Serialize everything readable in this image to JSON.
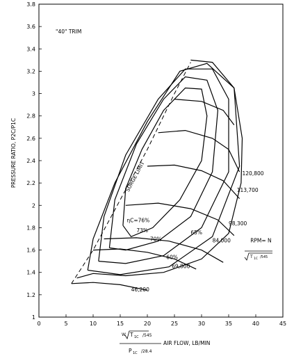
{
  "chart_data": {
    "type": "line",
    "annotation": "\"40\" TRIM",
    "ylabel": "PRESSURE RATIO, P2C/P1C",
    "xlabel": {
      "numerator_prefix": "W",
      "numerator_root": "T",
      "numerator_sub": "1C",
      "numerator_tail": "/545",
      "denominator_main": "P",
      "denominator_sub": "1C",
      "denominator_tail": "/28.4",
      "suffix": "AIR FLOW, LB/MIN"
    },
    "xlim": [
      0,
      45
    ],
    "ylim": [
      1,
      3.8
    ],
    "x_ticks": [
      "0",
      "5",
      "10",
      "15",
      "20",
      "25",
      "30",
      "35",
      "40",
      "45"
    ],
    "y_ticks": [
      "1",
      "1.2",
      "1.4",
      "1.6",
      "1.8",
      "2",
      "2.2",
      "2.4",
      "2.6",
      "2.8",
      "3",
      "3.2",
      "3.4",
      "3.6",
      "3.8"
    ],
    "surge_limit": {
      "label": "SURGE LIMIT",
      "points": [
        [
          6,
          1.3
        ],
        [
          10,
          1.6
        ],
        [
          15,
          2.05
        ],
        [
          20,
          2.5
        ],
        [
          25,
          3.0
        ],
        [
          28,
          3.28
        ]
      ]
    },
    "speed_lines": [
      {
        "label": "46,200",
        "points": [
          [
            6,
            1.3
          ],
          [
            10,
            1.31
          ],
          [
            15,
            1.29
          ],
          [
            20,
            1.24
          ]
        ]
      },
      {
        "label": "69,800",
        "points": [
          [
            10,
            1.6
          ],
          [
            15,
            1.61
          ],
          [
            20,
            1.58
          ],
          [
            25,
            1.52
          ],
          [
            29,
            1.43
          ]
        ]
      },
      {
        "label": "84,000",
        "points": [
          [
            12,
            1.7
          ],
          [
            18,
            1.71
          ],
          [
            24,
            1.68
          ],
          [
            30,
            1.6
          ],
          [
            34,
            1.49
          ]
        ]
      },
      {
        "label": "98,300",
        "points": [
          [
            16,
            2.0
          ],
          [
            22,
            2.02
          ],
          [
            28,
            1.97
          ],
          [
            33,
            1.87
          ],
          [
            36,
            1.73
          ]
        ]
      },
      {
        "label": "113,700",
        "points": [
          [
            20,
            2.35
          ],
          [
            25,
            2.36
          ],
          [
            30,
            2.31
          ],
          [
            34,
            2.22
          ],
          [
            37,
            2.06
          ]
        ]
      },
      {
        "label": "120,800",
        "points": [
          [
            22,
            2.65
          ],
          [
            27,
            2.67
          ],
          [
            32,
            2.6
          ],
          [
            35,
            2.5
          ],
          [
            37,
            2.3
          ]
        ]
      },
      {
        "label": "",
        "points": [
          [
            25,
            2.95
          ],
          [
            30,
            2.93
          ],
          [
            34,
            2.85
          ],
          [
            36,
            2.72
          ]
        ]
      }
    ],
    "efficiency_islands": [
      {
        "label": "ηC=76%",
        "points": [
          [
            15.5,
            1.82
          ],
          [
            16,
            2.15
          ],
          [
            19,
            2.5
          ],
          [
            23,
            2.85
          ],
          [
            27,
            3.05
          ],
          [
            30,
            3.04
          ],
          [
            31,
            2.8
          ],
          [
            30,
            2.4
          ],
          [
            26,
            2.05
          ],
          [
            21,
            1.8
          ],
          [
            17,
            1.72
          ],
          [
            15.5,
            1.82
          ]
        ]
      },
      {
        "label": "73%",
        "points": [
          [
            13,
            1.62
          ],
          [
            14,
            2.05
          ],
          [
            18,
            2.55
          ],
          [
            23,
            2.95
          ],
          [
            27,
            3.15
          ],
          [
            31,
            3.12
          ],
          [
            33,
            2.85
          ],
          [
            32,
            2.3
          ],
          [
            28,
            1.9
          ],
          [
            22,
            1.68
          ],
          [
            16,
            1.6
          ],
          [
            13,
            1.62
          ]
        ]
      },
      {
        "label": "70%",
        "points": [
          [
            11,
            1.5
          ],
          [
            12,
            1.9
          ],
          [
            16,
            2.45
          ],
          [
            22,
            2.95
          ],
          [
            27,
            3.22
          ],
          [
            32,
            3.22
          ],
          [
            35,
            2.95
          ],
          [
            35,
            2.3
          ],
          [
            30,
            1.8
          ],
          [
            23,
            1.55
          ],
          [
            16,
            1.48
          ],
          [
            11,
            1.5
          ]
        ]
      },
      {
        "label": "65%",
        "points": [
          [
            9,
            1.42
          ],
          [
            10,
            1.7
          ],
          [
            14,
            2.2
          ],
          [
            20,
            2.75
          ],
          [
            26,
            3.2
          ],
          [
            31,
            3.27
          ],
          [
            36,
            3.05
          ],
          [
            37,
            2.35
          ],
          [
            32,
            1.72
          ],
          [
            24,
            1.45
          ],
          [
            15,
            1.38
          ],
          [
            9,
            1.42
          ]
        ]
      },
      {
        "label": "60%",
        "points": [
          [
            7,
            1.35
          ],
          [
            10,
            1.39
          ],
          [
            16,
            1.37
          ],
          [
            23,
            1.4
          ],
          [
            30,
            1.52
          ],
          [
            35,
            1.75
          ],
          [
            37.3,
            2.2
          ],
          [
            37.5,
            2.6
          ],
          [
            36,
            3.05
          ],
          [
            32,
            3.28
          ],
          [
            28,
            3.3
          ]
        ]
      }
    ],
    "curve_labels": [
      {
        "text": "ηC=76%",
        "at": [
          16.2,
          1.85
        ]
      },
      {
        "text": "73%",
        "at": [
          18,
          1.76
        ]
      },
      {
        "text": "70%",
        "at": [
          20.5,
          1.68
        ]
      },
      {
        "text": "65%",
        "at": [
          28,
          1.74
        ]
      },
      {
        "text": "60%",
        "at": [
          23.5,
          1.52
        ]
      },
      {
        "text": "84,000",
        "at": [
          32,
          1.67
        ]
      },
      {
        "text": "69,800",
        "at": [
          24.5,
          1.44
        ]
      },
      {
        "text": "46,200",
        "at": [
          17,
          1.23
        ]
      },
      {
        "text": "98,300",
        "at": [
          35,
          1.82
        ]
      },
      {
        "text": "113,700",
        "at": [
          36.5,
          2.12
        ]
      },
      {
        "text": "120,800",
        "at": [
          37.5,
          2.27
        ]
      },
      {
        "text": "RPM= N",
        "at": [
          39,
          1.67
        ]
      }
    ],
    "rpm_formula": {
      "text": "RPM= N",
      "root": "T",
      "sub": "1C",
      "tail": "/545"
    }
  }
}
